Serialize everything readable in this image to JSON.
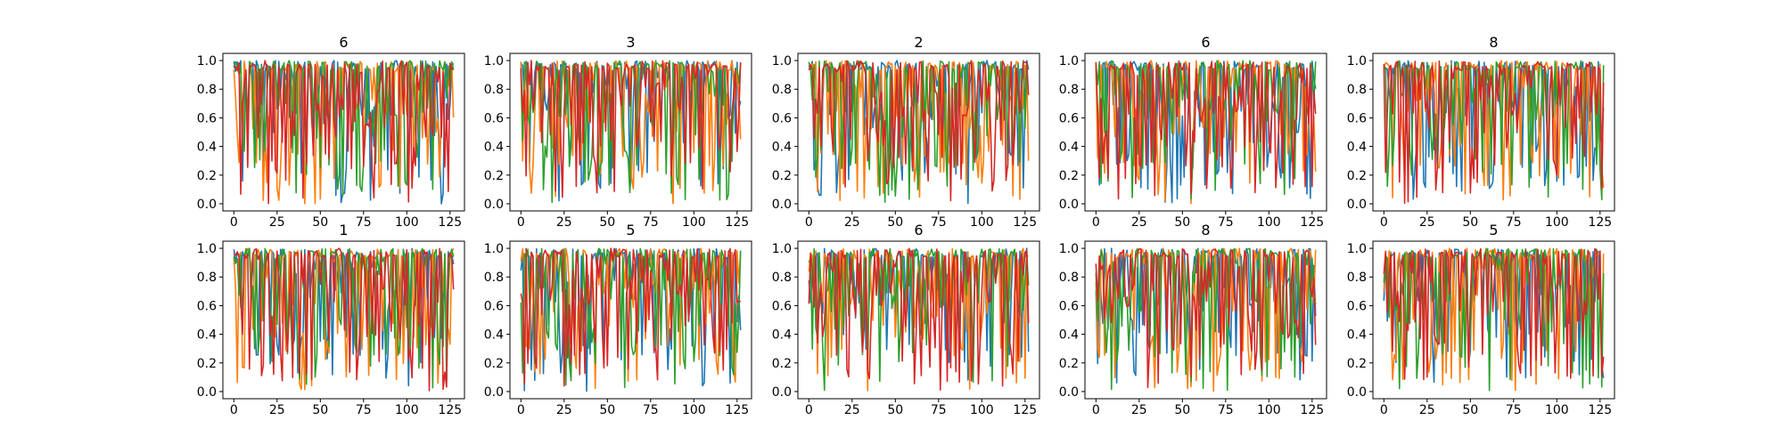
{
  "figure": {
    "layout": {
      "rows": 2,
      "cols": 5
    },
    "series_colors": [
      "#1f77b4",
      "#ff7f0e",
      "#2ca02c",
      "#d62728"
    ]
  },
  "chart_data": [
    {
      "type": "line",
      "title": "6",
      "xlim": [
        -6.35,
        133.35
      ],
      "ylim": [
        -0.05,
        1.05
      ],
      "xticks": [
        "0",
        "25",
        "50",
        "75",
        "100",
        "125"
      ],
      "yticks": [
        "0.0",
        "0.2",
        "0.4",
        "0.6",
        "0.8",
        "1.0"
      ],
      "x_range": [
        0,
        127
      ],
      "n_points": 128,
      "grid": false,
      "series_count": 4
    },
    {
      "type": "line",
      "title": "3",
      "xlim": [
        -6.35,
        133.35
      ],
      "ylim": [
        -0.05,
        1.05
      ],
      "xticks": [
        "0",
        "25",
        "50",
        "75",
        "100",
        "125"
      ],
      "yticks": [
        "0.0",
        "0.2",
        "0.4",
        "0.6",
        "0.8",
        "1.0"
      ],
      "x_range": [
        0,
        127
      ],
      "n_points": 128,
      "grid": false,
      "series_count": 4
    },
    {
      "type": "line",
      "title": "2",
      "xlim": [
        -6.35,
        133.35
      ],
      "ylim": [
        -0.05,
        1.05
      ],
      "xticks": [
        "0",
        "25",
        "50",
        "75",
        "100",
        "125"
      ],
      "yticks": [
        "0.0",
        "0.2",
        "0.4",
        "0.6",
        "0.8",
        "1.0"
      ],
      "x_range": [
        0,
        127
      ],
      "n_points": 128,
      "grid": false,
      "series_count": 4
    },
    {
      "type": "line",
      "title": "6",
      "xlim": [
        -6.35,
        133.35
      ],
      "ylim": [
        -0.05,
        1.05
      ],
      "xticks": [
        "0",
        "25",
        "50",
        "75",
        "100",
        "125"
      ],
      "yticks": [
        "0.0",
        "0.2",
        "0.4",
        "0.6",
        "0.8",
        "1.0"
      ],
      "x_range": [
        0,
        127
      ],
      "n_points": 128,
      "grid": false,
      "series_count": 4
    },
    {
      "type": "line",
      "title": "8",
      "xlim": [
        -6.35,
        133.35
      ],
      "ylim": [
        -0.05,
        1.05
      ],
      "xticks": [
        "0",
        "25",
        "50",
        "75",
        "100",
        "125"
      ],
      "yticks": [
        "0.0",
        "0.2",
        "0.4",
        "0.6",
        "0.8",
        "1.0"
      ],
      "x_range": [
        0,
        127
      ],
      "n_points": 128,
      "grid": false,
      "series_count": 4
    },
    {
      "type": "line",
      "title": "1",
      "xlim": [
        -6.35,
        133.35
      ],
      "ylim": [
        -0.05,
        1.05
      ],
      "xticks": [
        "0",
        "25",
        "50",
        "75",
        "100",
        "125"
      ],
      "yticks": [
        "0.0",
        "0.2",
        "0.4",
        "0.6",
        "0.8",
        "1.0"
      ],
      "x_range": [
        0,
        127
      ],
      "n_points": 128,
      "grid": false,
      "series_count": 4
    },
    {
      "type": "line",
      "title": "5",
      "xlim": [
        -6.35,
        133.35
      ],
      "ylim": [
        -0.05,
        1.05
      ],
      "xticks": [
        "0",
        "25",
        "50",
        "75",
        "100",
        "125"
      ],
      "yticks": [
        "0.0",
        "0.2",
        "0.4",
        "0.6",
        "0.8",
        "1.0"
      ],
      "x_range": [
        0,
        127
      ],
      "n_points": 128,
      "grid": false,
      "series_count": 4
    },
    {
      "type": "line",
      "title": "6",
      "xlim": [
        -6.35,
        133.35
      ],
      "ylim": [
        -0.05,
        1.05
      ],
      "xticks": [
        "0",
        "25",
        "50",
        "75",
        "100",
        "125"
      ],
      "yticks": [
        "0.0",
        "0.2",
        "0.4",
        "0.6",
        "0.8",
        "1.0"
      ],
      "x_range": [
        0,
        127
      ],
      "n_points": 128,
      "grid": false,
      "series_count": 4
    },
    {
      "type": "line",
      "title": "8",
      "xlim": [
        -6.35,
        133.35
      ],
      "ylim": [
        -0.05,
        1.05
      ],
      "xticks": [
        "0",
        "25",
        "50",
        "75",
        "100",
        "125"
      ],
      "yticks": [
        "0.0",
        "0.2",
        "0.4",
        "0.6",
        "0.8",
        "1.0"
      ],
      "x_range": [
        0,
        127
      ],
      "n_points": 128,
      "grid": false,
      "series_count": 4
    },
    {
      "type": "line",
      "title": "5",
      "xlim": [
        -6.35,
        133.35
      ],
      "ylim": [
        -0.05,
        1.05
      ],
      "xticks": [
        "0",
        "25",
        "50",
        "75",
        "100",
        "125"
      ],
      "yticks": [
        "0.0",
        "0.2",
        "0.4",
        "0.6",
        "0.8",
        "1.0"
      ],
      "x_range": [
        0,
        127
      ],
      "n_points": 128,
      "grid": false,
      "series_count": 4
    }
  ]
}
